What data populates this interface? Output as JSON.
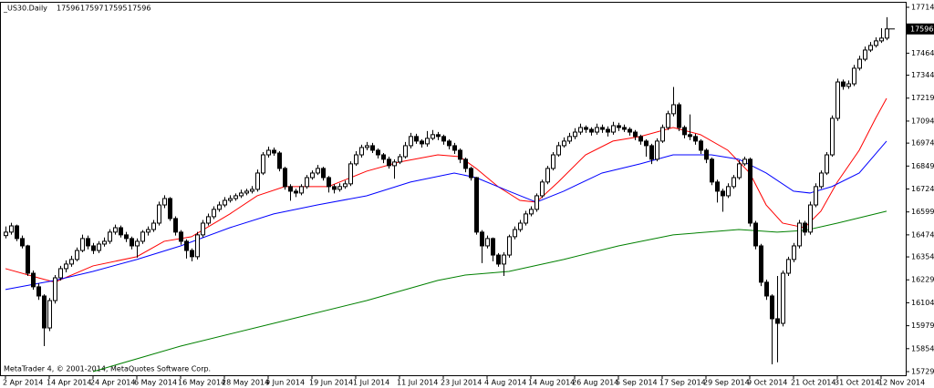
{
  "chart_data": {
    "type": "candlestick",
    "title": "_US30.Daily",
    "ohlc_info": [
      17596,
      17597,
      17595,
      17596
    ],
    "footer": "MetaTrader 4, © 2001-2014, MetaQuotes Software Corp.",
    "last_price": 17596,
    "ylim": [
      15729,
      17714
    ],
    "yticks": [
      17714,
      17464,
      17344,
      17219,
      17094,
      16974,
      16849,
      16724,
      16599,
      16474,
      16354,
      16229,
      16104,
      15979,
      15854,
      15729
    ],
    "xlim": [
      0,
      161
    ],
    "xticks": [
      {
        "value": 0,
        "label": "2 Apr 2014"
      },
      {
        "value": 8,
        "label": "14 Apr 2014"
      },
      {
        "value": 16,
        "label": "24 Apr 2014"
      },
      {
        "value": 24,
        "label": "6 May 2014"
      },
      {
        "value": 32,
        "label": "16 May 2014"
      },
      {
        "value": 40,
        "label": "28 May 2014"
      },
      {
        "value": 48,
        "label": "9 Jun 2014"
      },
      {
        "value": 56,
        "label": "19 Jun 2014"
      },
      {
        "value": 64,
        "label": "1 Jul 2014"
      },
      {
        "value": 72,
        "label": "11 Jul 2014"
      },
      {
        "value": 80,
        "label": "23 Jul 2014"
      },
      {
        "value": 88,
        "label": "4 Aug 2014"
      },
      {
        "value": 96,
        "label": "14 Aug 2014"
      },
      {
        "value": 104,
        "label": "26 Aug 2014"
      },
      {
        "value": 112,
        "label": "5 Sep 2014"
      },
      {
        "value": 120,
        "label": "17 Sep 2014"
      },
      {
        "value": 128,
        "label": "29 Sep 2014"
      },
      {
        "value": 136,
        "label": "9 Oct 2014"
      },
      {
        "value": 144,
        "label": "21 Oct 2014"
      },
      {
        "value": 152,
        "label": "31 Oct 2014"
      },
      {
        "value": 160,
        "label": "12 Nov 2014"
      }
    ],
    "candles": [
      [
        16470,
        16520,
        16455,
        16489
      ],
      [
        16489,
        16540,
        16475,
        16523
      ],
      [
        16523,
        16530,
        16440,
        16454
      ],
      [
        16454,
        16470,
        16400,
        16414
      ],
      [
        16414,
        16420,
        16250,
        16265
      ],
      [
        16265,
        16280,
        16175,
        16191
      ],
      [
        16191,
        16210,
        16120,
        16141
      ],
      [
        16141,
        16150,
        15868,
        15967
      ],
      [
        15967,
        16130,
        15950,
        16116
      ],
      [
        16116,
        16255,
        16100,
        16240
      ],
      [
        16240,
        16305,
        16225,
        16290
      ],
      [
        16290,
        16335,
        16270,
        16315
      ],
      [
        16315,
        16360,
        16300,
        16340
      ],
      [
        16340,
        16405,
        16330,
        16389
      ],
      [
        16389,
        16475,
        16380,
        16454
      ],
      [
        16454,
        16470,
        16395,
        16414
      ],
      [
        16414,
        16430,
        16370,
        16389
      ],
      [
        16389,
        16440,
        16375,
        16424
      ],
      [
        16424,
        16460,
        16410,
        16439
      ],
      [
        16439,
        16505,
        16425,
        16489
      ],
      [
        16489,
        16530,
        16475,
        16513
      ],
      [
        16513,
        16525,
        16460,
        16474
      ],
      [
        16474,
        16490,
        16435,
        16454
      ],
      [
        16454,
        16465,
        16395,
        16414
      ],
      [
        16414,
        16455,
        16350,
        16439
      ],
      [
        16439,
        16500,
        16425,
        16489
      ],
      [
        16489,
        16520,
        16470,
        16503
      ],
      [
        16503,
        16555,
        16490,
        16538
      ],
      [
        16538,
        16655,
        16525,
        16637
      ],
      [
        16637,
        16690,
        16620,
        16672
      ],
      [
        16672,
        16680,
        16550,
        16563
      ],
      [
        16563,
        16575,
        16470,
        16489
      ],
      [
        16489,
        16500,
        16420,
        16439
      ],
      [
        16439,
        16450,
        16345,
        16389
      ],
      [
        16389,
        16400,
        16330,
        16355
      ],
      [
        16355,
        16490,
        16340,
        16474
      ],
      [
        16474,
        16555,
        16460,
        16538
      ],
      [
        16538,
        16590,
        16525,
        16573
      ],
      [
        16573,
        16630,
        16560,
        16613
      ],
      [
        16613,
        16655,
        16600,
        16637
      ],
      [
        16637,
        16680,
        16625,
        16662
      ],
      [
        16662,
        16690,
        16650,
        16672
      ],
      [
        16672,
        16700,
        16660,
        16687
      ],
      [
        16687,
        16720,
        16675,
        16702
      ],
      [
        16702,
        16725,
        16690,
        16712
      ],
      [
        16712,
        16740,
        16700,
        16722
      ],
      [
        16722,
        16830,
        16710,
        16811
      ],
      [
        16811,
        16925,
        16800,
        16910
      ],
      [
        16910,
        16955,
        16895,
        16935
      ],
      [
        16935,
        16950,
        16905,
        16920
      ],
      [
        16920,
        16930,
        16820,
        16836
      ],
      [
        16836,
        16845,
        16720,
        16737
      ],
      [
        16737,
        16750,
        16660,
        16712
      ],
      [
        16712,
        16725,
        16680,
        16702
      ],
      [
        16702,
        16750,
        16690,
        16737
      ],
      [
        16737,
        16800,
        16725,
        16786
      ],
      [
        16786,
        16825,
        16775,
        16811
      ],
      [
        16811,
        16855,
        16800,
        16836
      ],
      [
        16836,
        16845,
        16770,
        16786
      ],
      [
        16786,
        16795,
        16705,
        16737
      ],
      [
        16737,
        16750,
        16700,
        16722
      ],
      [
        16722,
        16755,
        16710,
        16737
      ],
      [
        16737,
        16770,
        16725,
        16752
      ],
      [
        16752,
        16875,
        16740,
        16861
      ],
      [
        16861,
        16930,
        16850,
        16910
      ],
      [
        16910,
        16965,
        16895,
        16950
      ],
      [
        16950,
        16980,
        16935,
        16960
      ],
      [
        16960,
        16975,
        16920,
        16935
      ],
      [
        16935,
        16945,
        16890,
        16910
      ],
      [
        16910,
        16920,
        16865,
        16886
      ],
      [
        16886,
        16900,
        16835,
        16851
      ],
      [
        16851,
        16885,
        16780,
        16871
      ],
      [
        16871,
        16915,
        16860,
        16900
      ],
      [
        16900,
        16980,
        16890,
        16960
      ],
      [
        16960,
        17030,
        16945,
        17010
      ],
      [
        17010,
        17025,
        16970,
        16985
      ],
      [
        16985,
        16995,
        16950,
        16970
      ],
      [
        16970,
        17040,
        16955,
        17000
      ],
      [
        17000,
        17045,
        16990,
        17020
      ],
      [
        17020,
        17035,
        16990,
        17010
      ],
      [
        17010,
        17020,
        16965,
        16985
      ],
      [
        16985,
        16995,
        16940,
        16960
      ],
      [
        16960,
        16975,
        16915,
        16935
      ],
      [
        16935,
        16945,
        16865,
        16886
      ],
      [
        16886,
        16895,
        16815,
        16836
      ],
      [
        16836,
        16845,
        16770,
        16786
      ],
      [
        16786,
        16790,
        16475,
        16489
      ],
      [
        16489,
        16500,
        16320,
        16414
      ],
      [
        16414,
        16470,
        16400,
        16454
      ],
      [
        16454,
        16460,
        16330,
        16364
      ],
      [
        16364,
        16375,
        16300,
        16315
      ],
      [
        16315,
        16380,
        16250,
        16364
      ],
      [
        16364,
        16475,
        16350,
        16464
      ],
      [
        16464,
        16520,
        16450,
        16503
      ],
      [
        16503,
        16555,
        16490,
        16538
      ],
      [
        16538,
        16605,
        16525,
        16588
      ],
      [
        16588,
        16630,
        16575,
        16613
      ],
      [
        16613,
        16700,
        16600,
        16687
      ],
      [
        16687,
        16775,
        16675,
        16762
      ],
      [
        16762,
        16850,
        16750,
        16836
      ],
      [
        16836,
        16925,
        16825,
        16910
      ],
      [
        16910,
        16980,
        16900,
        16960
      ],
      [
        16960,
        17005,
        16950,
        16985
      ],
      [
        16985,
        17030,
        16970,
        17010
      ],
      [
        17010,
        17055,
        16995,
        17034
      ],
      [
        17034,
        17080,
        17020,
        17059
      ],
      [
        17059,
        17070,
        17030,
        17049
      ],
      [
        17049,
        17060,
        17015,
        17034
      ],
      [
        17034,
        17080,
        17020,
        17059
      ],
      [
        17059,
        17075,
        17030,
        17049
      ],
      [
        17049,
        17065,
        17010,
        17034
      ],
      [
        17034,
        17090,
        17020,
        17069
      ],
      [
        17069,
        17085,
        17040,
        17059
      ],
      [
        17059,
        17075,
        17035,
        17049
      ],
      [
        17049,
        17060,
        17015,
        17034
      ],
      [
        17034,
        17045,
        16990,
        17010
      ],
      [
        17010,
        17020,
        16965,
        16985
      ],
      [
        16985,
        16995,
        16900,
        16960
      ],
      [
        16960,
        16970,
        16860,
        16886
      ],
      [
        16886,
        17000,
        16875,
        16985
      ],
      [
        16985,
        17075,
        16975,
        17059
      ],
      [
        17059,
        17150,
        17045,
        17134
      ],
      [
        17134,
        17280,
        17120,
        17183
      ],
      [
        17183,
        17195,
        17040,
        17059
      ],
      [
        17059,
        17070,
        17000,
        17020
      ],
      [
        17020,
        17130,
        16990,
        17010
      ],
      [
        17010,
        17025,
        16965,
        16985
      ],
      [
        16985,
        16995,
        16915,
        16935
      ],
      [
        16935,
        16945,
        16865,
        16886
      ],
      [
        16886,
        16895,
        16745,
        16762
      ],
      [
        16762,
        16775,
        16650,
        16712
      ],
      [
        16712,
        16725,
        16600,
        16687
      ],
      [
        16687,
        16755,
        16675,
        16737
      ],
      [
        16737,
        16800,
        16725,
        16786
      ],
      [
        16786,
        16880,
        16775,
        16861
      ],
      [
        16861,
        16900,
        16850,
        16886
      ],
      [
        16886,
        16895,
        16520,
        16538
      ],
      [
        16538,
        16550,
        16395,
        16414
      ],
      [
        16414,
        16425,
        16195,
        16216
      ],
      [
        16216,
        16230,
        16120,
        16141
      ],
      [
        16141,
        16150,
        15769,
        16017
      ],
      [
        16017,
        16250,
        15780,
        15992
      ],
      [
        15992,
        16280,
        15975,
        16265
      ],
      [
        16265,
        16355,
        16250,
        16340
      ],
      [
        16340,
        16430,
        16325,
        16414
      ],
      [
        16414,
        16555,
        16400,
        16538
      ],
      [
        16538,
        16550,
        16470,
        16489
      ],
      [
        16489,
        16655,
        16475,
        16637
      ],
      [
        16637,
        16755,
        16625,
        16737
      ],
      [
        16737,
        16825,
        16725,
        16811
      ],
      [
        16811,
        16925,
        16800,
        16910
      ],
      [
        16910,
        17125,
        16900,
        17109
      ],
      [
        17109,
        17325,
        17095,
        17307
      ],
      [
        17307,
        17320,
        17265,
        17283
      ],
      [
        17283,
        17315,
        17270,
        17297
      ],
      [
        17297,
        17400,
        17285,
        17382
      ],
      [
        17382,
        17450,
        17370,
        17431
      ],
      [
        17431,
        17500,
        17420,
        17481
      ],
      [
        17481,
        17525,
        17470,
        17506
      ],
      [
        17506,
        17550,
        17495,
        17531
      ],
      [
        17531,
        17600,
        17520,
        17546
      ],
      [
        17546,
        17660,
        17535,
        17596
      ]
    ],
    "series": [
      {
        "color": "#ff0000",
        "x": [
          0,
          6,
          9,
          16,
          24,
          29,
          34,
          41,
          46,
          51,
          59,
          66,
          72,
          79,
          83,
          86,
          90,
          94,
          97,
          101,
          106,
          111,
          116,
          122,
          127,
          132,
          136,
          139,
          142,
          146,
          149,
          152,
          156,
          159,
          161
        ],
        "values": [
          16290,
          16240,
          16216,
          16305,
          16355,
          16439,
          16464,
          16588,
          16687,
          16737,
          16737,
          16821,
          16871,
          16910,
          16900,
          16836,
          16737,
          16662,
          16652,
          16762,
          16910,
          16985,
          17010,
          17059,
          17020,
          16935,
          16811,
          16637,
          16538,
          16513,
          16603,
          16762,
          16935,
          17109,
          17218
        ]
      },
      {
        "color": "#0000ff",
        "x": [
          0,
          9,
          16,
          24,
          32,
          41,
          49,
          57,
          66,
          74,
          82,
          86,
          92,
          97,
          102,
          109,
          116,
          122,
          129,
          134,
          139,
          144,
          147,
          151,
          156,
          161
        ],
        "values": [
          16176,
          16226,
          16275,
          16340,
          16414,
          16513,
          16588,
          16637,
          16687,
          16762,
          16811,
          16786,
          16712,
          16652,
          16712,
          16811,
          16861,
          16910,
          16910,
          16886,
          16811,
          16712,
          16702,
          16737,
          16811,
          16985
        ]
      },
      {
        "color": "#008000",
        "x": [
          16,
          32,
          49,
          66,
          79,
          84,
          92,
          102,
          112,
          122,
          134,
          141,
          146,
          152,
          161
        ],
        "values": [
          15729,
          15868,
          15992,
          16116,
          16226,
          16255,
          16275,
          16340,
          16414,
          16474,
          16503,
          16489,
          16498,
          16538,
          16603
        ]
      }
    ]
  }
}
